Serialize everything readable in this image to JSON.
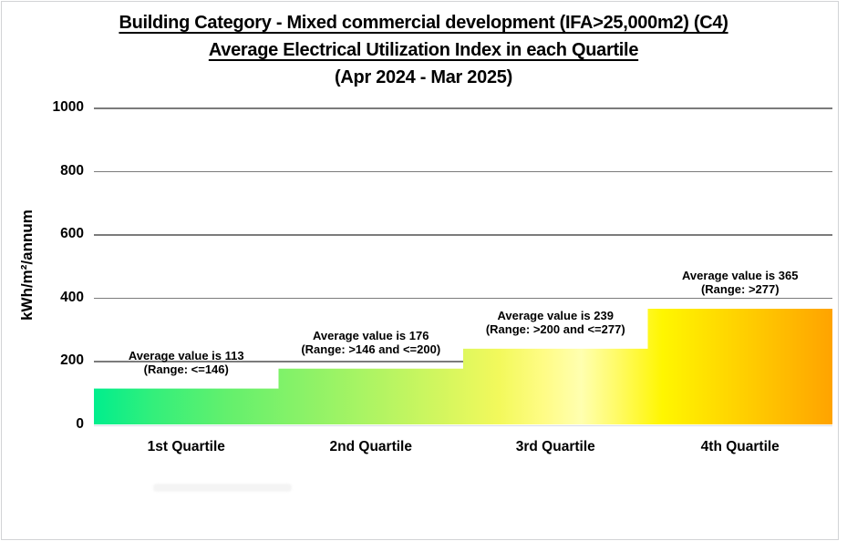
{
  "chart_data": {
    "type": "bar",
    "title": "Building Category - Mixed commercial development (IFA>25,000m2) (C4)",
    "subtitle": "Average Electrical Utilization Index in each Quartile",
    "period": "(Apr 2024 - Mar 2025)",
    "categories": [
      "1st Quartile",
      "2nd Quartile",
      "3rd Quartile",
      "4th Quartile"
    ],
    "values": [
      113,
      176,
      239,
      365
    ],
    "bar_labels": [
      [
        "Average value is 113",
        "(Range: <=146)"
      ],
      [
        "Average value is 176",
        "(Range: >146 and <=200)"
      ],
      [
        "Average value is 239",
        "(Range: >200 and <=277)"
      ],
      [
        "Average value is 365",
        "(Range: >277)"
      ]
    ],
    "ylabel": "kWh/m²/annum",
    "yticks": [
      0,
      200,
      400,
      600,
      800,
      1000
    ],
    "ylim": [
      0,
      1000
    ],
    "grid": true,
    "legend": false,
    "gridline_color": "#7b7b7b",
    "text_color": "#000000",
    "gradient_stops": [
      {
        "pos": 0,
        "color": "#00ee8d"
      },
      {
        "pos": 8,
        "color": "#33ef7b"
      },
      {
        "pos": 18,
        "color": "#63f06d"
      },
      {
        "pos": 33,
        "color": "#9cf365"
      },
      {
        "pos": 46,
        "color": "#cff65f"
      },
      {
        "pos": 55,
        "color": "#f3f95c"
      },
      {
        "pos": 61,
        "color": "#fffc86"
      },
      {
        "pos": 66,
        "color": "#ffffb0"
      },
      {
        "pos": 71,
        "color": "#fffb64"
      },
      {
        "pos": 77,
        "color": "#fff600"
      },
      {
        "pos": 85,
        "color": "#ffda00"
      },
      {
        "pos": 93,
        "color": "#ffbd00"
      },
      {
        "pos": 100,
        "color": "#ffa300"
      }
    ]
  }
}
